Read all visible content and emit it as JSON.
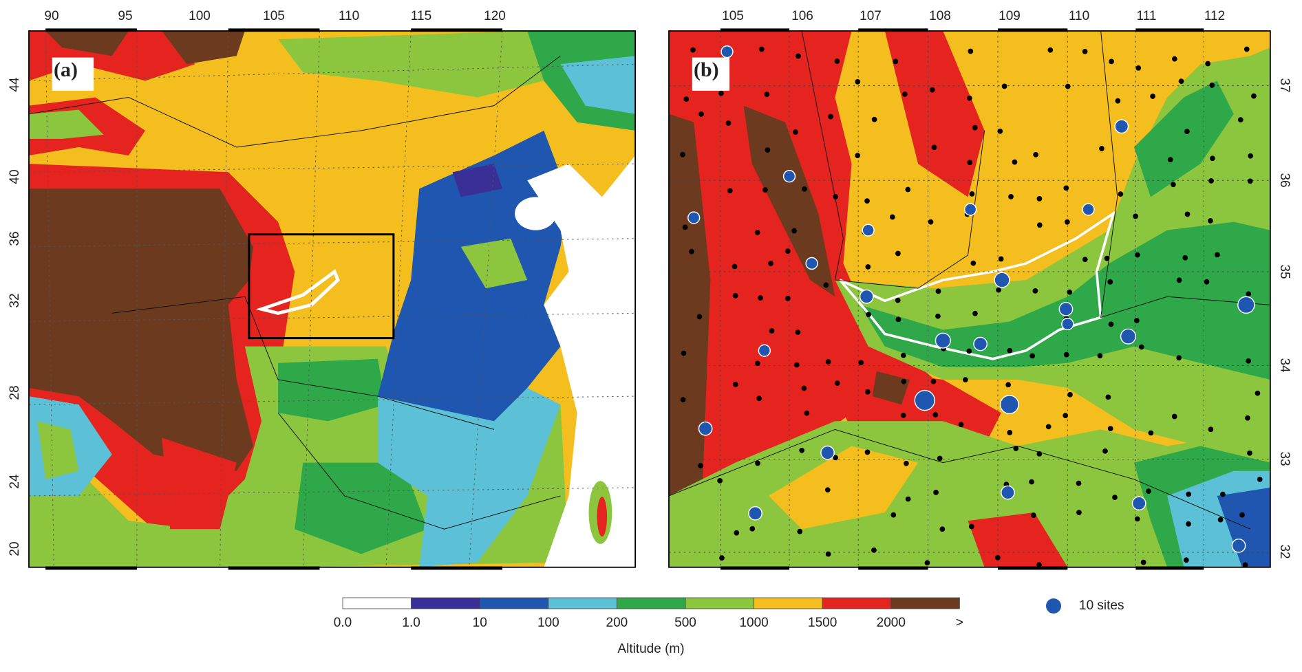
{
  "panels": [
    {
      "label": "(a)",
      "top_ticks": [
        90,
        95,
        100,
        105,
        110,
        115,
        120
      ],
      "left_ticks": [
        44,
        40,
        36,
        32,
        28,
        24,
        20
      ]
    },
    {
      "label": "(b)",
      "top_ticks": [
        105,
        106,
        107,
        108,
        109,
        110,
        111,
        112
      ],
      "right_ticks": [
        37,
        36,
        35,
        34,
        33,
        32
      ]
    }
  ],
  "colorbar": {
    "labels": [
      "0.0",
      "1.0",
      "10",
      "100",
      "200",
      "500",
      "1000",
      "1500",
      "2000",
      ">"
    ],
    "title": "Altitude (m)"
  },
  "legend": {
    "label": "10 sites"
  }
}
